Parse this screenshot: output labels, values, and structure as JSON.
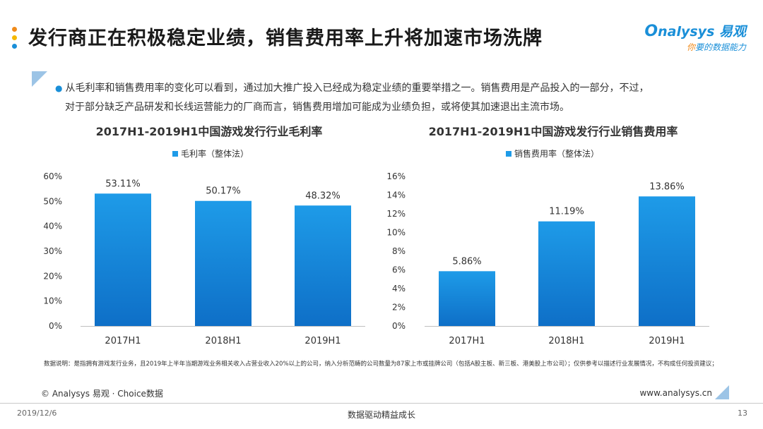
{
  "page": {
    "title": "发行商正在积极稳定业绩，销售费用率上升将加速市场洗牌",
    "logo": {
      "brand": "nalysys 易观",
      "brand_initial": "O",
      "tagline_accent": "你",
      "tagline": "要的数据能力"
    },
    "intro": {
      "line1": "从毛利率和销售费用率的变化可以看到，通过加大推广投入已经成为稳定业绩的重要举措之一。销售费用是产品投入的一部分，不过，",
      "line2": "对于部分缺乏产品研发和长线运营能力的厂商而言，销售费用增加可能成为业绩负担，或将使其加速退出主流市场。"
    },
    "note": "数据说明：是指拥有游戏发行业务，且2019年上半年当期游戏业务相关收入占营业收入20%以上的公司，纳入分析范畴的公司数量为87家上市或挂牌公司（包括A股主板、新三板、港美股上市公司）；仅供参考以描述行业发展情况，不构成任何投资建议；",
    "copyright": "© Analysys 易观 · Choice数据",
    "website": "www.analysys.cn",
    "date": "2019/12/6",
    "slogan": "数据驱动精益成长",
    "page_number": "13",
    "colors": {
      "bar_top": "#1e9be8",
      "bar_bottom": "#0e6fc7",
      "accent": "#1a8fd8",
      "orange": "#f08a1a",
      "dot_yellow": "#f5b800",
      "light_blue": "#9cc4e6"
    }
  },
  "chart_data": [
    {
      "type": "bar",
      "title": "2017H1-2019H1中国游戏发行行业毛利率",
      "categories": [
        "2017H1",
        "2018H1",
        "2019H1"
      ],
      "series": [
        {
          "name": "毛利率（整体法）",
          "values": [
            53.11,
            50.17,
            48.32
          ]
        }
      ],
      "data_labels": [
        "53.11%",
        "50.17%",
        "48.32%"
      ],
      "ylim": [
        0,
        60
      ],
      "yticks": [
        0,
        10,
        20,
        30,
        40,
        50,
        60
      ],
      "ytick_labels": [
        "0%",
        "10%",
        "20%",
        "30%",
        "40%",
        "50%",
        "60%"
      ],
      "legend_position": "top-center",
      "grid": false
    },
    {
      "type": "bar",
      "title": "2017H1-2019H1中国游戏发行行业销售费用率",
      "categories": [
        "2017H1",
        "2018H1",
        "2019H1"
      ],
      "series": [
        {
          "name": "销售费用率（整体法）",
          "values": [
            5.86,
            11.19,
            13.86
          ]
        }
      ],
      "data_labels": [
        "5.86%",
        "11.19%",
        "13.86%"
      ],
      "ylim": [
        0,
        16
      ],
      "yticks": [
        0,
        2,
        4,
        6,
        8,
        10,
        12,
        14,
        16
      ],
      "ytick_labels": [
        "0%",
        "2%",
        "4%",
        "6%",
        "8%",
        "10%",
        "12%",
        "14%",
        "16%"
      ],
      "legend_position": "top-center",
      "grid": false
    }
  ]
}
